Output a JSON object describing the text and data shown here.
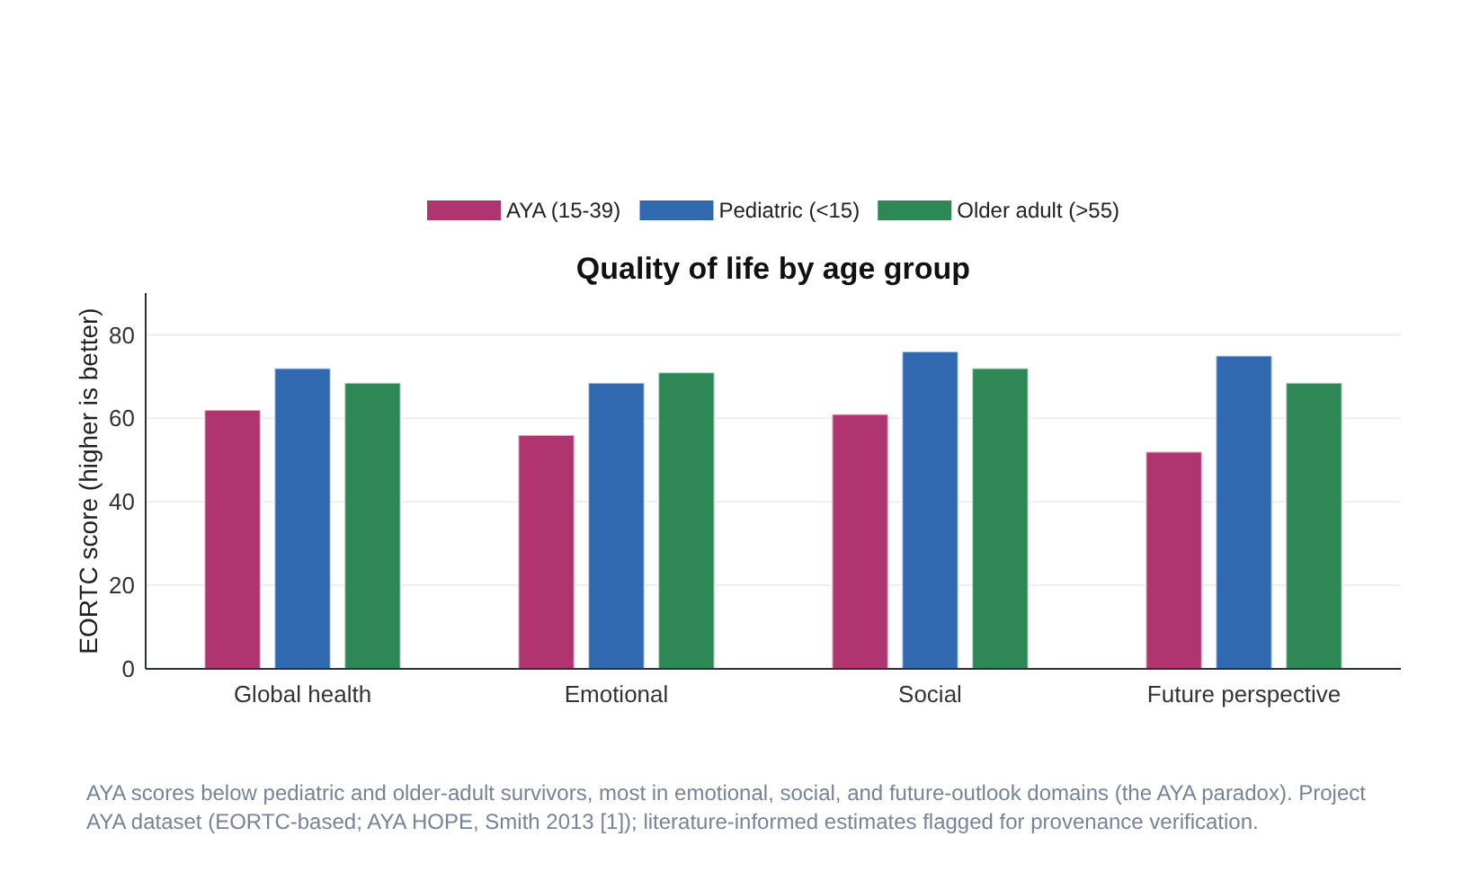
{
  "chart_data": {
    "type": "bar",
    "title": "Quality of life by age group",
    "ylabel": "EORTC score (higher is better)",
    "categories": [
      "Global health",
      "Emotional",
      "Social",
      "Future perspective"
    ],
    "series": [
      {
        "name": "AYA (15-39)",
        "color": "#b0346f",
        "values": [
          62,
          56,
          61,
          52
        ]
      },
      {
        "name": "Pediatric (<15)",
        "color": "#3069b0",
        "values": [
          72,
          68.5,
          76,
          75
        ]
      },
      {
        "name": "Older adult (>55)",
        "color": "#2e8856",
        "values": [
          68.5,
          71,
          72,
          68.5
        ]
      }
    ],
    "ylim": [
      0,
      90
    ],
    "yticks": [
      0,
      20,
      40,
      60,
      80
    ],
    "grid": "y",
    "legend": "top",
    "annotations": [
      "AYA scores below pediatric and older-adult survivors, most in emotional, social, and future-outlook domains (the AYA paradox).  Project AYA dataset (EORTC-based; AYA HOPE, Smith 2013 [1]); literature-informed estimates flagged for provenance verification."
    ]
  }
}
